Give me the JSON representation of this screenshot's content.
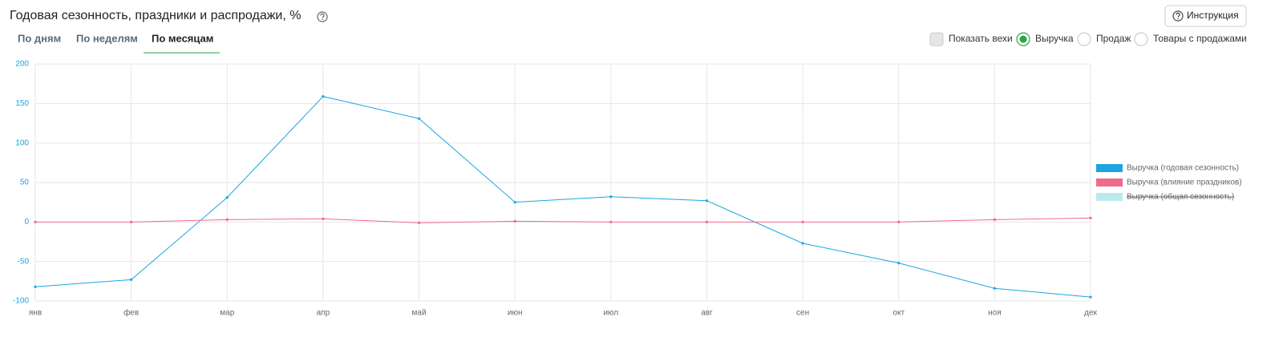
{
  "header": {
    "title": "Годовая сезонность, праздники и распродажи, %",
    "button": "Инструкция"
  },
  "tabs": {
    "items": [
      "По дням",
      "По неделям",
      "По месяцам"
    ],
    "active": 2
  },
  "controls": {
    "checkbox": "Показать вехи",
    "radios": [
      "Выручка",
      "Продаж",
      "Товары с продажами"
    ],
    "selected": 0
  },
  "chart_data": {
    "type": "line",
    "categories": [
      "янв",
      "фев",
      "мар",
      "апр",
      "май",
      "июн",
      "июл",
      "авг",
      "сен",
      "окт",
      "ноя",
      "дек"
    ],
    "series": [
      {
        "name": "Выручка (годовая сезонность)",
        "color": "#1aa6e0",
        "values": [
          -82,
          -73,
          31,
          159,
          131,
          25,
          32,
          27,
          -27,
          -52,
          -84,
          -95
        ]
      },
      {
        "name": "Выручка (влияние праздников)",
        "color": "#f06a8a",
        "values": [
          0,
          0,
          3,
          4,
          -1,
          1,
          0,
          0,
          0,
          0,
          3,
          5
        ]
      },
      {
        "name": "Выручка (общая сезонность)",
        "color": "#b8eaee",
        "hidden": true
      }
    ],
    "ylim": [
      -100,
      200
    ],
    "yticks": [
      -100,
      -50,
      0,
      50,
      100,
      150,
      200
    ],
    "grid": true,
    "legend": "right"
  }
}
